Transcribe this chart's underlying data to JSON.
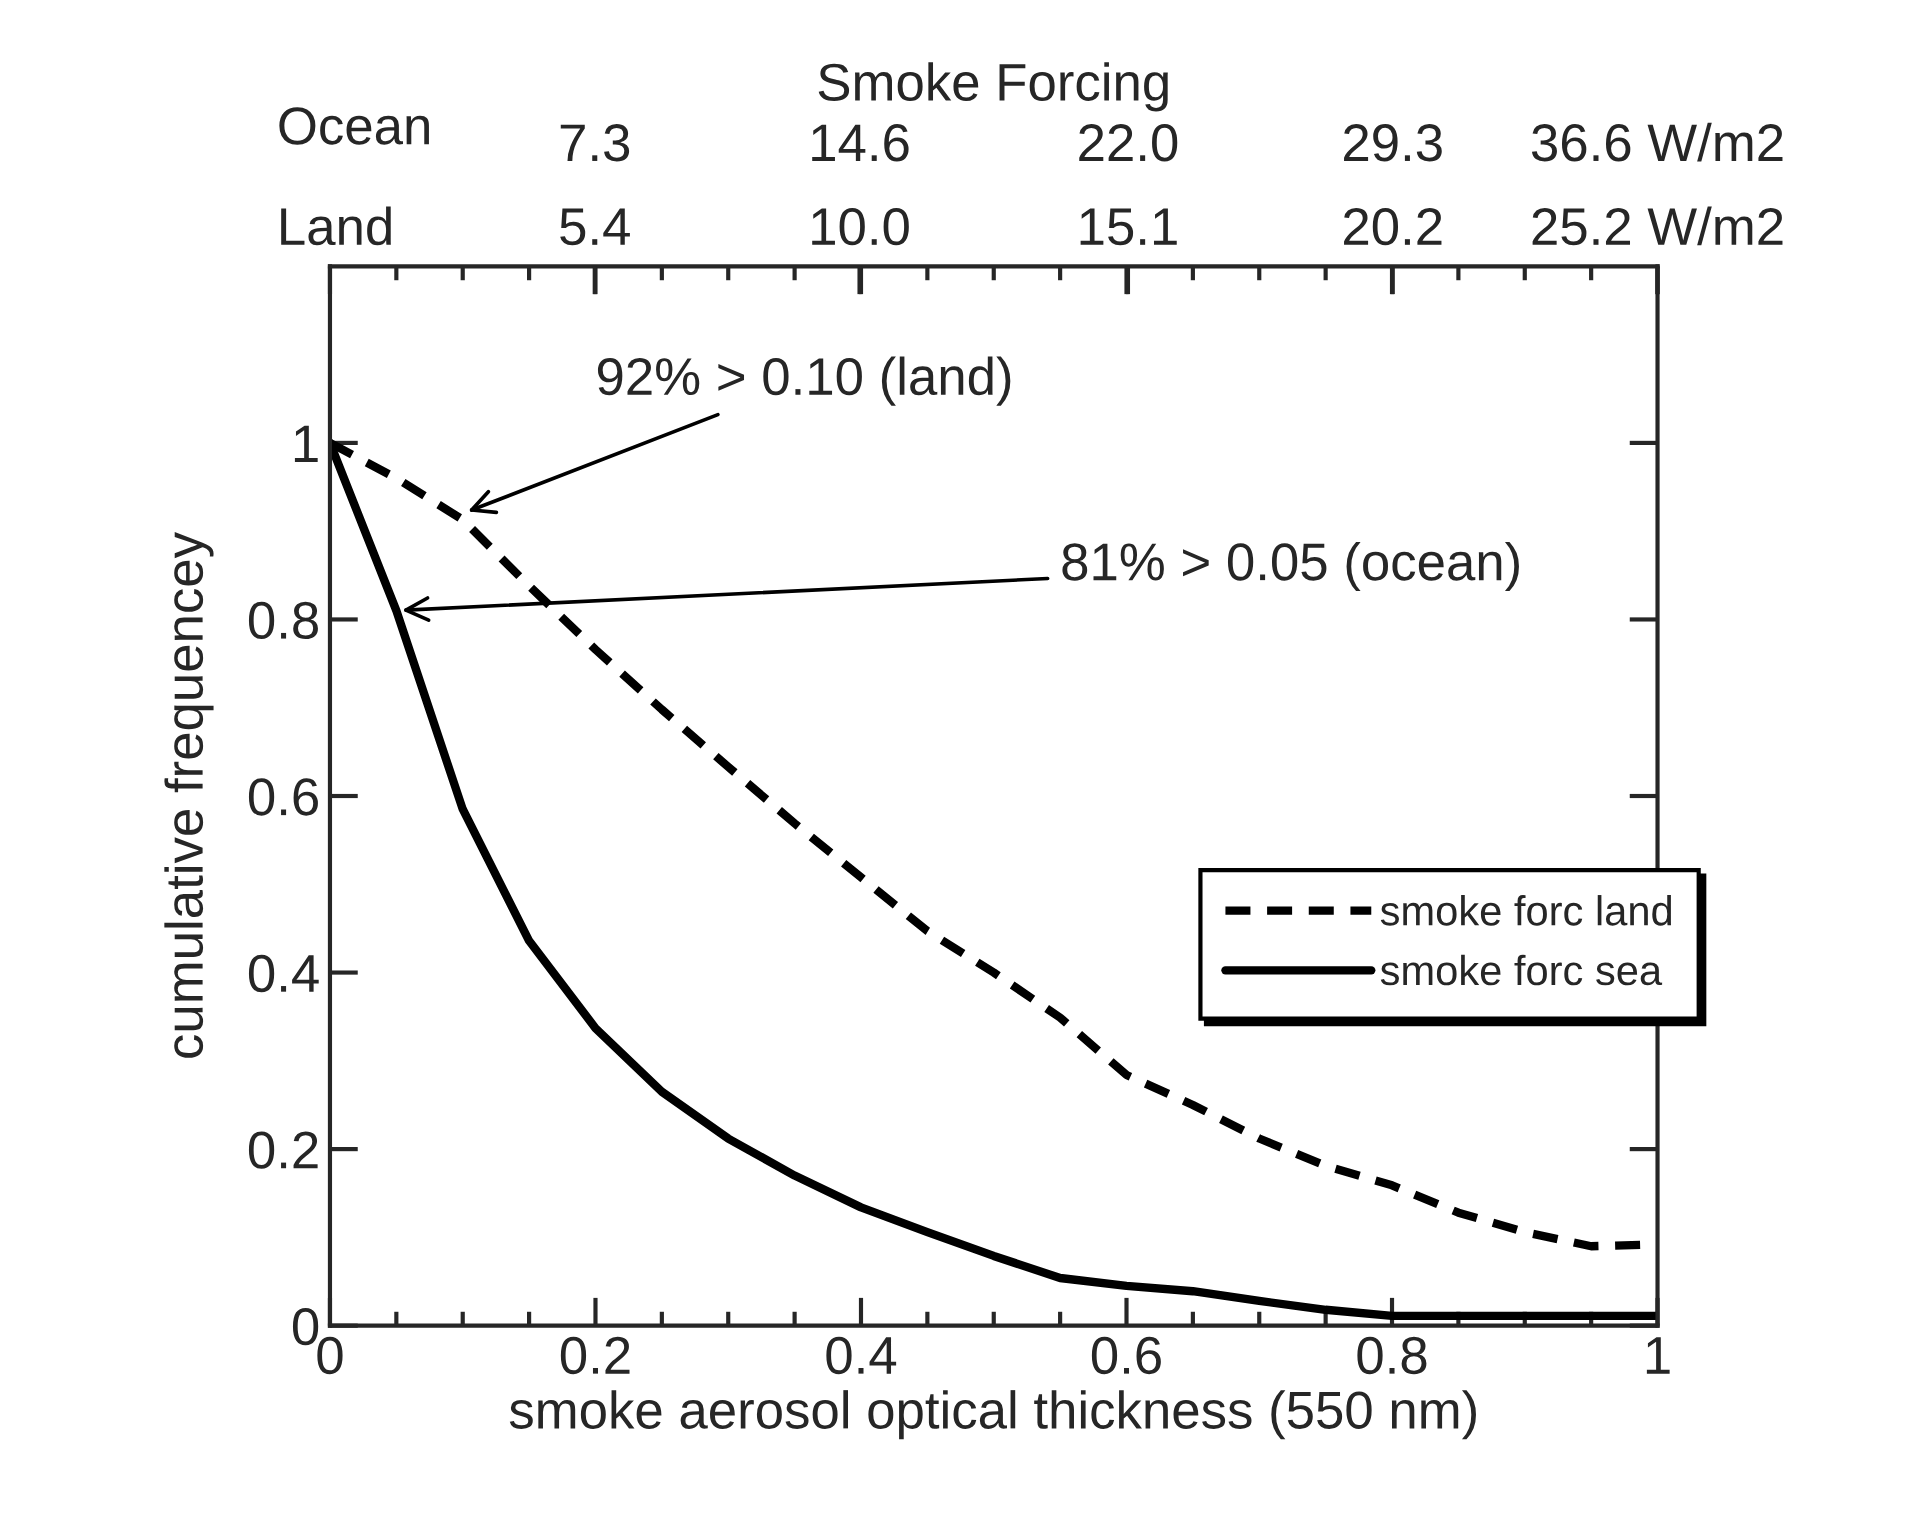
{
  "chart_data": {
    "type": "line",
    "xlabel": "smoke aerosol optical thickness (550 nm)",
    "ylabel": "cumulative frequencey",
    "x2label": "Smoke Forcing",
    "xlim": [
      0,
      1
    ],
    "ylim": [
      0,
      1.2
    ],
    "xticks": [
      0,
      0.2,
      0.4,
      0.6,
      0.8,
      1
    ],
    "yticks": [
      0,
      0.2,
      0.4,
      0.6,
      0.8,
      1
    ],
    "x2lim": [
      0,
      36.6
    ],
    "x2ticks": [
      7.3,
      14.6,
      {
        "value": 22,
        "label": "22.0"
      },
      29.3,
      {
        "value": 36.6,
        "label": "36.6 W/m2"
      }
    ],
    "x": [
      0,
      0.05,
      0.1,
      0.15,
      0.2,
      0.25,
      0.3,
      0.35,
      0.4,
      0.45,
      0.5,
      0.55,
      0.6,
      0.65,
      0.7,
      0.75,
      0.8,
      0.85,
      0.9,
      0.95,
      1
    ],
    "series": [
      {
        "name": "smoke forc land",
        "color": "#000000",
        "line_style": "dashed",
        "values": [
          1,
          0.96,
          0.913,
          0.838,
          0.766,
          0.698,
          0.633,
          0.569,
          0.508,
          0.447,
          0.4,
          0.349,
          0.284,
          0.25,
          0.212,
          0.181,
          0.159,
          0.128,
          0.106,
          0.09,
          0.092
        ]
      },
      {
        "name": "smoke forc sea",
        "color": "#000000",
        "line_style": "solid",
        "values": [
          1,
          0.81,
          0.585,
          0.436,
          0.337,
          0.265,
          0.212,
          0.17,
          0.134,
          0.106,
          0.079,
          0.054,
          0.045,
          0.039,
          0.028,
          0.018,
          0.011,
          0.011,
          0.011,
          0.011,
          0.011
        ]
      }
    ],
    "annotations": [
      "Ocean",
      "Land",
      "5.4",
      "10.0",
      "15.1",
      "20.2",
      "25.2 W/m2",
      {
        "text": "92% > 0.10 (land)",
        "x": 0.1,
        "y": 0.92
      },
      {
        "text": "81% > 0.05 (ocean)",
        "x": 0.05,
        "y": 0.81
      }
    ],
    "legend": "right",
    "grid": false,
    "marker": "none"
  }
}
